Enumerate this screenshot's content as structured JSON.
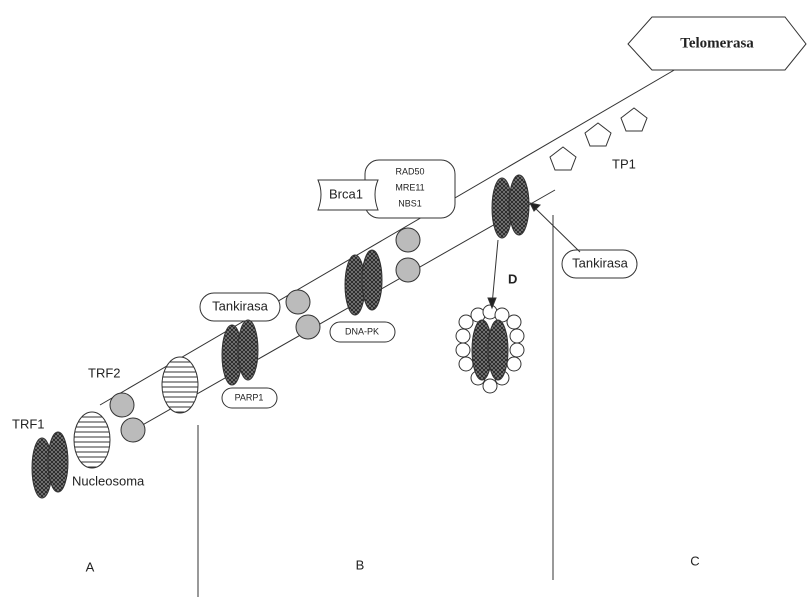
{
  "labels": {
    "telomerasa": "Telomerasa",
    "tp1": "TP1",
    "rad50": "RAD50",
    "mre11": "MRE11",
    "nbs1": "NBS1",
    "brca1": "Brca1",
    "tankirasa_top": "Tankirasa",
    "tankirasa_right": "Tankirasa",
    "d": "D",
    "dnapk": "DNA-PK",
    "parp1": "PARP1",
    "trf2": "TRF2",
    "trf1": "TRF1",
    "nucleosoma": "Nucleosoma",
    "a": "A",
    "b": "B",
    "c": "C"
  }
}
